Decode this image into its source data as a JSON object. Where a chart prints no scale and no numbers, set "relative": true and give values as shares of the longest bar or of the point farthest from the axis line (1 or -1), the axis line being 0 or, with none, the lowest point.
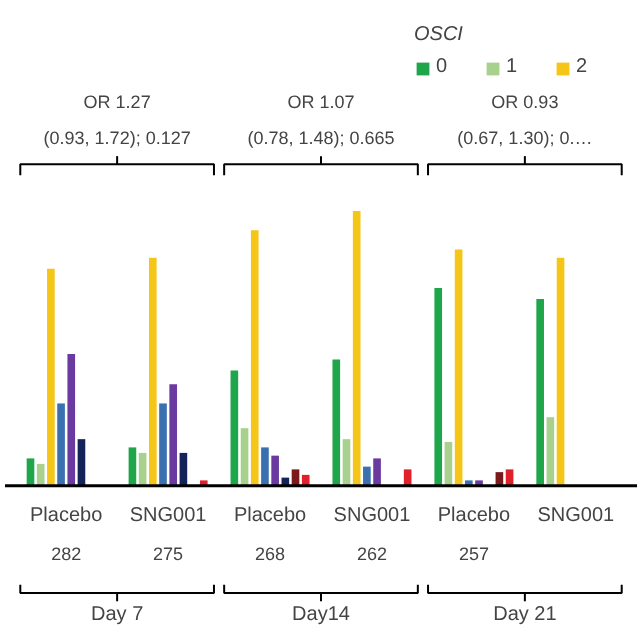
{
  "chart_data": {
    "type": "bar",
    "relative": true,
    "categories": [
      "Placebo\n282",
      "SNG001\n275",
      "Placebo\n268",
      "SNG001\n262",
      "Placebo\n257",
      "SNG001"
    ],
    "series": [
      {
        "name": "0",
        "color": "#1fa64a",
        "values": [
          0.1,
          0.14,
          0.42,
          0.46,
          0.72,
          0.68
        ]
      },
      {
        "name": "1",
        "color": "#a9d18e",
        "values": [
          0.08,
          0.12,
          0.21,
          0.17,
          0.16,
          0.25
        ]
      },
      {
        "name": "2",
        "color": "#f5c518",
        "values": [
          0.79,
          0.83,
          0.93,
          1.0,
          0.86,
          0.83
        ]
      },
      {
        "color": "#3a6fb0",
        "values": [
          0.3,
          0.3,
          0.14,
          0.07,
          0.02,
          null
        ]
      },
      {
        "color": "#6a3aa0",
        "values": [
          0.48,
          0.37,
          0.11,
          0.1,
          0.02,
          null
        ]
      },
      {
        "color": "#14245a",
        "values": [
          0.17,
          0.12,
          0.03,
          null,
          0.0,
          null
        ]
      },
      {
        "color": "#7a1a1a",
        "values": [
          null,
          null,
          0.06,
          null,
          0.05,
          null
        ]
      },
      {
        "color": "#e0202a",
        "values": [
          0.0,
          0.02,
          0.04,
          0.06,
          0.06,
          null
        ]
      }
    ],
    "legend": "top right",
    "legend_title": "OSCI",
    "annotations": [
      "Day 7",
      "Day14",
      "Day 21",
      "OR 1.27\n(0.93, 1.72); 0.127",
      "OR 1.07\n(0.78, 1.48); 0.665",
      "OR 0.93\n(0.67, 1.30); 0.…"
    ]
  }
}
